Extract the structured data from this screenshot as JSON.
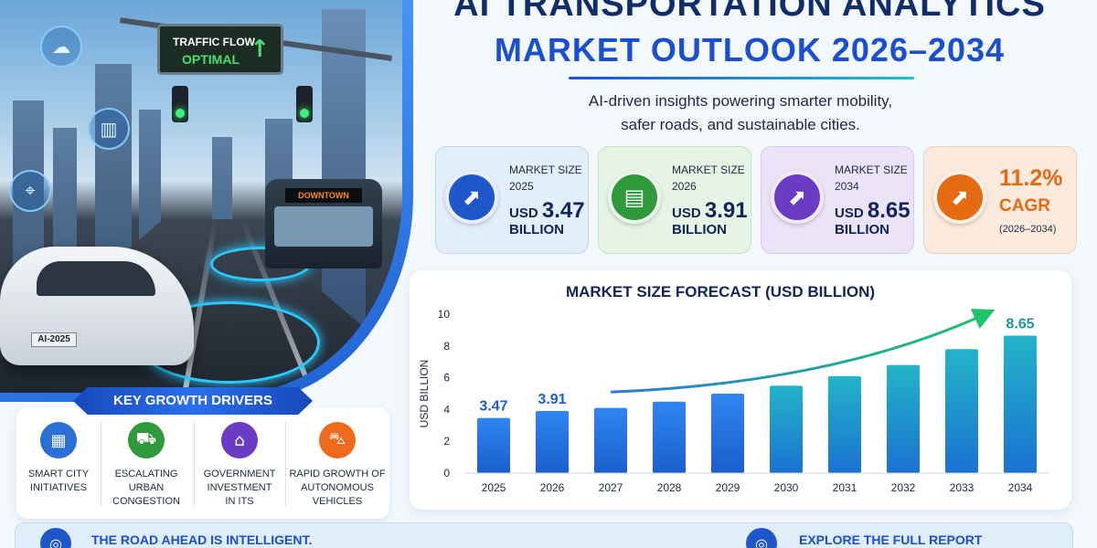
{
  "title": {
    "line1": "AI TRANSPORTATION ANALYTICS",
    "line2": "MARKET OUTLOOK 2026–2034",
    "subtitle_line1": "AI-driven insights powering smarter mobility,",
    "subtitle_line2": "safer roads, and sustainable cities."
  },
  "hero": {
    "traffic_sign_line1": "TRAFFIC FLOW",
    "traffic_sign_line2": "OPTIMAL",
    "bus_sign": "DOWNTOWN",
    "car_plate": "AI-2025",
    "icons": [
      "cloud-icon",
      "chart-icon",
      "location-pin-icon"
    ]
  },
  "stats": [
    {
      "label_line1": "MARKET SIZE",
      "label_line2": "2025",
      "prefix": "USD",
      "value": "3.47",
      "unit": "BILLION",
      "color": "#1f56c9",
      "icon": "chart-up-icon"
    },
    {
      "label_line1": "MARKET SIZE",
      "label_line2": "2026",
      "prefix": "USD",
      "value": "3.91",
      "unit": "BILLION",
      "color": "#2f9a3a",
      "icon": "calendar-icon"
    },
    {
      "label_line1": "MARKET SIZE",
      "label_line2": "2034",
      "prefix": "USD",
      "value": "8.65",
      "unit": "BILLION",
      "color": "#6a3bc5",
      "icon": "chart-up-icon"
    },
    {
      "value": "11.2%",
      "label": "CAGR",
      "range": "(2026–2034)",
      "color": "#e56a12",
      "icon": "chart-up-icon"
    }
  ],
  "drivers": {
    "title": "KEY GROWTH DRIVERS",
    "items": [
      {
        "line1": "SMART CITY",
        "line2": "INITIATIVES",
        "line3": "",
        "color": "#2a6fd6",
        "icon": "city-icon"
      },
      {
        "line1": "ESCALATING",
        "line2": "URBAN",
        "line3": "CONGESTION",
        "color": "#2f9a3a",
        "icon": "cars-icon"
      },
      {
        "line1": "GOVERNMENT",
        "line2": "INVESTMENT",
        "line3": "IN ITS",
        "color": "#6a3bc5",
        "icon": "government-icon"
      },
      {
        "line1": "RAPID GROWTH OF",
        "line2": "AUTONOMOUS",
        "line3": "VEHICLES",
        "color": "#ef6a1d",
        "icon": "car-icon"
      }
    ]
  },
  "chart_data": {
    "type": "bar",
    "title": "MARKET SIZE FORECAST (USD BILLION)",
    "ylabel": "USD BILLION",
    "xlabel": "",
    "categories": [
      "2025",
      "2026",
      "2027",
      "2028",
      "2029",
      "2030",
      "2031",
      "2032",
      "2033",
      "2034"
    ],
    "values": [
      3.47,
      3.91,
      4.1,
      4.5,
      5.0,
      5.5,
      6.1,
      6.8,
      7.8,
      8.65
    ],
    "data_labels": {
      "0": "3.47",
      "1": "3.91",
      "9": "8.65"
    },
    "ylim": [
      0,
      10
    ],
    "yticks": [
      "0",
      "2",
      "4",
      "6",
      "8",
      "10"
    ],
    "trend_arrow": true,
    "grid": false
  },
  "footer": {
    "left_text": "THE ROAD AHEAD IS INTELLIGENT.",
    "right_text": "EXPLORE THE FULL REPORT"
  }
}
